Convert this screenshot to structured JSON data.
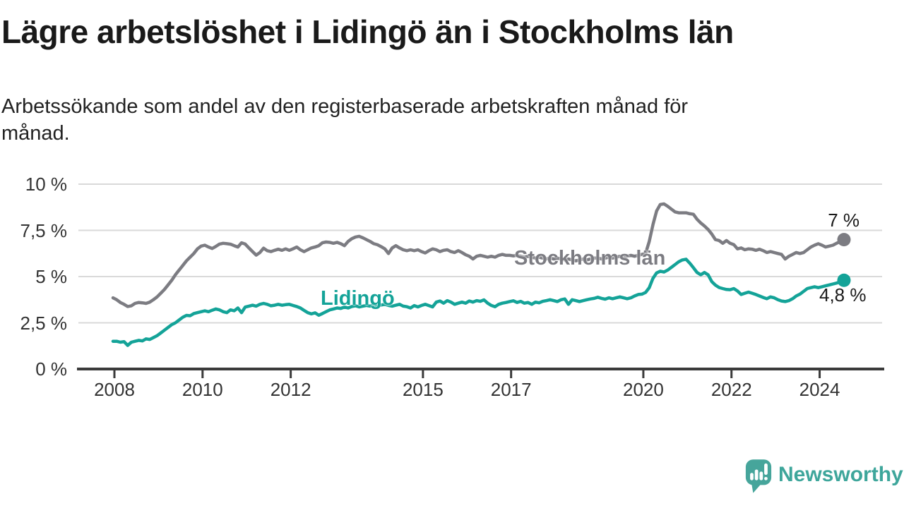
{
  "title": "Lägre arbetslöshet i Lidingö än i Stockholms län",
  "subtitle": "Arbetssökande som andel av den registerbaserade arbetskraften månad för\nmånad.",
  "branding": {
    "name": "Newsworthy",
    "color": "#3ea69b",
    "icon": "newsworthy-speech-bubble-bar-chart-icon"
  },
  "chart_data": {
    "type": "line",
    "title": "Lägre arbetslöshet i Lidingö än i Stockholms län",
    "unit": "%",
    "x_frequency": "monthly",
    "x_start": "2008-01",
    "x_end": "2024-08",
    "x_tick_years": [
      2008,
      2010,
      2012,
      2015,
      2017,
      2020,
      2022,
      2024
    ],
    "y_ticks": [
      {
        "value": 10,
        "label": "10 %"
      },
      {
        "value": 7.5,
        "label": "7,5 %"
      },
      {
        "value": 5,
        "label": "5 %"
      },
      {
        "value": 2.5,
        "label": "2,5 %"
      },
      {
        "value": 0,
        "label": "0 %"
      }
    ],
    "ylim": [
      0,
      10
    ],
    "grid": "horizontal",
    "legend_position": "inline-labels",
    "colors": {
      "grid": "#d9d9d9",
      "axis": "#3b3b3b",
      "tick_text": "#333333"
    },
    "series": [
      {
        "name": "Stockholms län",
        "color": "#7c7c82",
        "end_value": 7.0,
        "end_value_label": "7 %",
        "values": [
          3.85,
          3.75,
          3.6,
          3.5,
          3.38,
          3.42,
          3.55,
          3.6,
          3.58,
          3.55,
          3.62,
          3.75,
          3.9,
          4.1,
          4.3,
          4.55,
          4.8,
          5.1,
          5.35,
          5.6,
          5.85,
          6.05,
          6.25,
          6.5,
          6.65,
          6.7,
          6.6,
          6.52,
          6.63,
          6.76,
          6.8,
          6.78,
          6.75,
          6.67,
          6.6,
          6.83,
          6.76,
          6.55,
          6.35,
          6.16,
          6.3,
          6.54,
          6.4,
          6.35,
          6.42,
          6.48,
          6.42,
          6.5,
          6.42,
          6.5,
          6.6,
          6.45,
          6.35,
          6.45,
          6.55,
          6.6,
          6.67,
          6.83,
          6.87,
          6.85,
          6.8,
          6.85,
          6.78,
          6.67,
          6.9,
          7.05,
          7.14,
          7.18,
          7.1,
          7.0,
          6.9,
          6.78,
          6.72,
          6.62,
          6.5,
          6.25,
          6.55,
          6.67,
          6.55,
          6.45,
          6.4,
          6.45,
          6.4,
          6.45,
          6.35,
          6.28,
          6.4,
          6.5,
          6.45,
          6.35,
          6.42,
          6.45,
          6.35,
          6.3,
          6.4,
          6.3,
          6.18,
          6.1,
          5.95,
          6.1,
          6.15,
          6.1,
          6.05,
          6.1,
          6.05,
          6.15,
          6.2,
          6.15,
          6.15,
          6.12,
          6.15,
          6.1,
          6.05,
          6.1,
          6.05,
          6.0,
          6.05,
          6.0,
          5.95,
          6.0,
          5.95,
          6.0,
          5.95,
          5.9,
          5.95,
          5.9,
          5.85,
          5.9,
          5.95,
          5.9,
          5.95,
          6.0,
          6.0,
          5.95,
          6.0,
          6.05,
          6.0,
          6.05,
          6.1,
          6.05,
          6.1,
          6.15,
          6.1,
          6.15,
          6.2,
          6.25,
          6.9,
          7.8,
          8.55,
          8.9,
          8.93,
          8.8,
          8.65,
          8.5,
          8.45,
          8.45,
          8.45,
          8.4,
          8.37,
          8.1,
          7.9,
          7.74,
          7.55,
          7.3,
          7.0,
          6.95,
          6.8,
          6.95,
          6.8,
          6.73,
          6.5,
          6.55,
          6.45,
          6.5,
          6.48,
          6.42,
          6.48,
          6.4,
          6.3,
          6.35,
          6.3,
          6.25,
          6.2,
          5.95,
          6.1,
          6.2,
          6.3,
          6.25,
          6.3,
          6.45,
          6.6,
          6.7,
          6.78,
          6.7,
          6.6,
          6.65,
          6.7,
          6.8,
          6.9,
          7.0
        ]
      },
      {
        "name": "Lidingö",
        "color": "#14a398",
        "end_value": 4.8,
        "end_value_label": "4,8 %",
        "values": [
          1.5,
          1.5,
          1.45,
          1.48,
          1.28,
          1.45,
          1.5,
          1.55,
          1.52,
          1.63,
          1.6,
          1.7,
          1.8,
          1.95,
          2.1,
          2.25,
          2.4,
          2.5,
          2.65,
          2.8,
          2.9,
          2.88,
          3.0,
          3.05,
          3.1,
          3.15,
          3.1,
          3.18,
          3.25,
          3.2,
          3.1,
          3.05,
          3.2,
          3.15,
          3.3,
          3.05,
          3.35,
          3.4,
          3.45,
          3.4,
          3.5,
          3.55,
          3.5,
          3.42,
          3.45,
          3.5,
          3.45,
          3.48,
          3.5,
          3.44,
          3.38,
          3.3,
          3.17,
          3.05,
          2.98,
          3.04,
          2.91,
          3.0,
          3.1,
          3.2,
          3.25,
          3.3,
          3.28,
          3.35,
          3.3,
          3.38,
          3.42,
          3.36,
          3.4,
          3.44,
          3.4,
          3.45,
          3.42,
          3.46,
          3.5,
          3.44,
          3.4,
          3.45,
          3.5,
          3.4,
          3.37,
          3.3,
          3.43,
          3.36,
          3.44,
          3.5,
          3.43,
          3.36,
          3.62,
          3.68,
          3.56,
          3.7,
          3.62,
          3.5,
          3.56,
          3.62,
          3.56,
          3.68,
          3.62,
          3.7,
          3.66,
          3.74,
          3.56,
          3.44,
          3.37,
          3.5,
          3.56,
          3.6,
          3.65,
          3.69,
          3.6,
          3.66,
          3.56,
          3.6,
          3.5,
          3.62,
          3.58,
          3.66,
          3.7,
          3.75,
          3.7,
          3.65,
          3.75,
          3.79,
          3.5,
          3.75,
          3.7,
          3.65,
          3.7,
          3.75,
          3.79,
          3.82,
          3.88,
          3.82,
          3.78,
          3.85,
          3.8,
          3.85,
          3.9,
          3.85,
          3.8,
          3.85,
          3.95,
          4.03,
          4.05,
          4.14,
          4.4,
          4.9,
          5.2,
          5.29,
          5.25,
          5.35,
          5.5,
          5.65,
          5.8,
          5.9,
          5.94,
          5.73,
          5.48,
          5.22,
          5.1,
          5.22,
          5.1,
          4.73,
          4.54,
          4.41,
          4.35,
          4.3,
          4.29,
          4.35,
          4.22,
          4.03,
          4.1,
          4.16,
          4.1,
          4.03,
          3.95,
          3.87,
          3.8,
          3.9,
          3.85,
          3.75,
          3.68,
          3.65,
          3.7,
          3.8,
          3.95,
          4.05,
          4.2,
          4.35,
          4.4,
          4.45,
          4.4,
          4.45,
          4.5,
          4.55,
          4.6,
          4.65,
          4.72,
          4.8
        ]
      }
    ]
  }
}
